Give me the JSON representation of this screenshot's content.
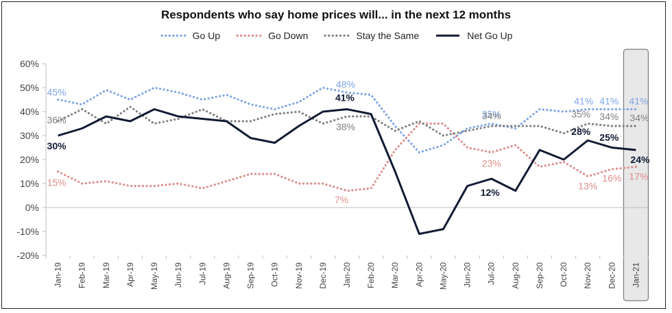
{
  "chart_data": {
    "type": "line",
    "title": "Respondents who say home prices will... in the next 12 months",
    "xlabel": "",
    "ylabel": "",
    "categories": [
      "Jan-19",
      "Feb-19",
      "Mar-19",
      "Apr-19",
      "May-19",
      "Jun-19",
      "Jul-19",
      "Aug-19",
      "Sep-19",
      "Oct-19",
      "Nov-19",
      "Dec-19",
      "Jan-20",
      "Feb-20",
      "Mar-20",
      "Apr-20",
      "May-20",
      "Jun-20",
      "Jul-20",
      "Aug-20",
      "Sep-20",
      "Oct-20",
      "Nov-20",
      "Dec-20",
      "Jan-21"
    ],
    "ylim": [
      -20,
      60
    ],
    "yticks": [
      "-20%",
      "-10%",
      "0%",
      "10%",
      "20%",
      "30%",
      "40%",
      "50%",
      "60%"
    ],
    "ytick_values": [
      -20,
      -10,
      0,
      10,
      20,
      30,
      40,
      50,
      60
    ],
    "grid": false,
    "legend_position": "top",
    "highlight_category": "Jan-21",
    "series": [
      {
        "name": "Go Up",
        "style": "dotted",
        "color": "#7fa3e6",
        "values": [
          45,
          43,
          49,
          45,
          50,
          48,
          45,
          47,
          43,
          41,
          44,
          50,
          48,
          47,
          34,
          23,
          26,
          33,
          35,
          33,
          41,
          40,
          41,
          41,
          41
        ],
        "labels": [
          {
            "i": 0,
            "text": "45%"
          },
          {
            "i": 12,
            "text": "48%"
          },
          {
            "i": 18,
            "text": "35%"
          },
          {
            "i": 22,
            "text": "41%"
          },
          {
            "i": 23,
            "text": "41%"
          },
          {
            "i": 24,
            "text": "41%"
          }
        ]
      },
      {
        "name": "Go Down",
        "style": "dotted",
        "color": "#de8d8a",
        "values": [
          15,
          10,
          11,
          9,
          9,
          10,
          8,
          11,
          14,
          14,
          10,
          10,
          7,
          8,
          24,
          35,
          35,
          25,
          23,
          26,
          17,
          19,
          13,
          16,
          17
        ],
        "labels": [
          {
            "i": 0,
            "text": "15%"
          },
          {
            "i": 12,
            "text": "7%"
          },
          {
            "i": 18,
            "text": "23%"
          },
          {
            "i": 22,
            "text": "13%"
          },
          {
            "i": 23,
            "text": "16%"
          },
          {
            "i": 24,
            "text": "17%"
          }
        ]
      },
      {
        "name": "Stay the Same",
        "style": "dotted",
        "color": "#808080",
        "values": [
          36,
          41,
          35,
          42,
          35,
          37,
          41,
          36,
          36,
          39,
          40,
          35,
          38,
          38,
          32,
          36,
          30,
          32,
          34,
          34,
          34,
          31,
          35,
          34,
          34
        ],
        "labels": [
          {
            "i": 0,
            "text": "36%"
          },
          {
            "i": 12,
            "text": "38%"
          },
          {
            "i": 18,
            "text": "34%"
          },
          {
            "i": 22,
            "text": "35%"
          },
          {
            "i": 23,
            "text": "34%"
          },
          {
            "i": 24,
            "text": "34%"
          }
        ]
      },
      {
        "name": "Net Go Up",
        "style": "solid",
        "color": "#111a33",
        "values": [
          30,
          33,
          38,
          36,
          41,
          38,
          37,
          36,
          29,
          27,
          34,
          40,
          41,
          39,
          15,
          -11,
          -9,
          9,
          12,
          7,
          24,
          20,
          28,
          25,
          24
        ],
        "labels": [
          {
            "i": 0,
            "text": "30%"
          },
          {
            "i": 12,
            "text": "41%"
          },
          {
            "i": 18,
            "text": "12%"
          },
          {
            "i": 22,
            "text": "28%"
          },
          {
            "i": 23,
            "text": "25%"
          },
          {
            "i": 24,
            "text": "24%"
          }
        ]
      }
    ]
  }
}
